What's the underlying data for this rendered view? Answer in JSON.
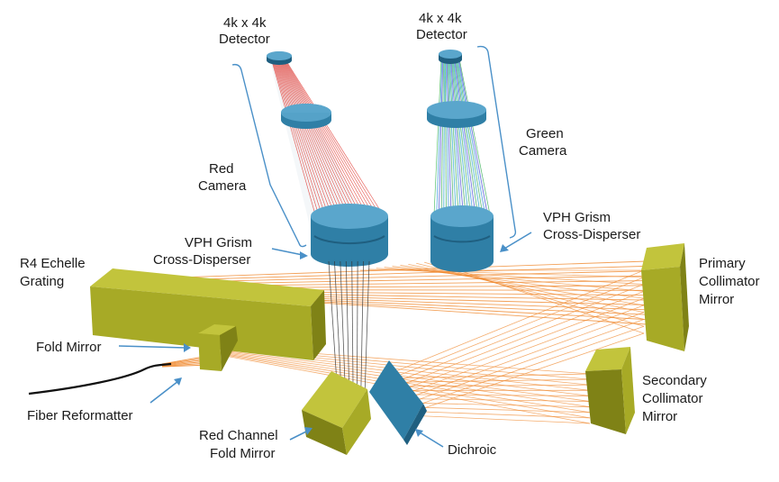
{
  "labels": {
    "detector_left_1": "4k x 4k",
    "detector_left_2": "Detector",
    "detector_right_1": "4k x 4k",
    "detector_right_2": "Detector",
    "red_camera_1": "Red",
    "red_camera_2": "Camera",
    "green_camera_1": "Green",
    "green_camera_2": "Camera",
    "vph_left_1": "VPH Grism",
    "vph_left_2": "Cross-Disperser",
    "vph_right_1": "VPH Grism",
    "vph_right_2": "Cross-Disperser",
    "echelle_1": "R4 Echelle",
    "echelle_2": "Grating",
    "primary_1": "Primary",
    "primary_2": "Collimator",
    "primary_3": "Mirror",
    "fold_mirror": "Fold Mirror",
    "fiber_reformatter": "Fiber Reformatter",
    "secondary_1": "Secondary",
    "secondary_2": "Collimator",
    "secondary_3": "Mirror",
    "red_fold_1": "Red Channel",
    "red_fold_2": "Fold Mirror",
    "dichroic": "Dichroic"
  },
  "colors": {
    "beam": "#f08a30",
    "optics_olive": "#a7aa26",
    "camera_blue": "#2f7fa6",
    "callout_blue": "#4a90c8"
  }
}
